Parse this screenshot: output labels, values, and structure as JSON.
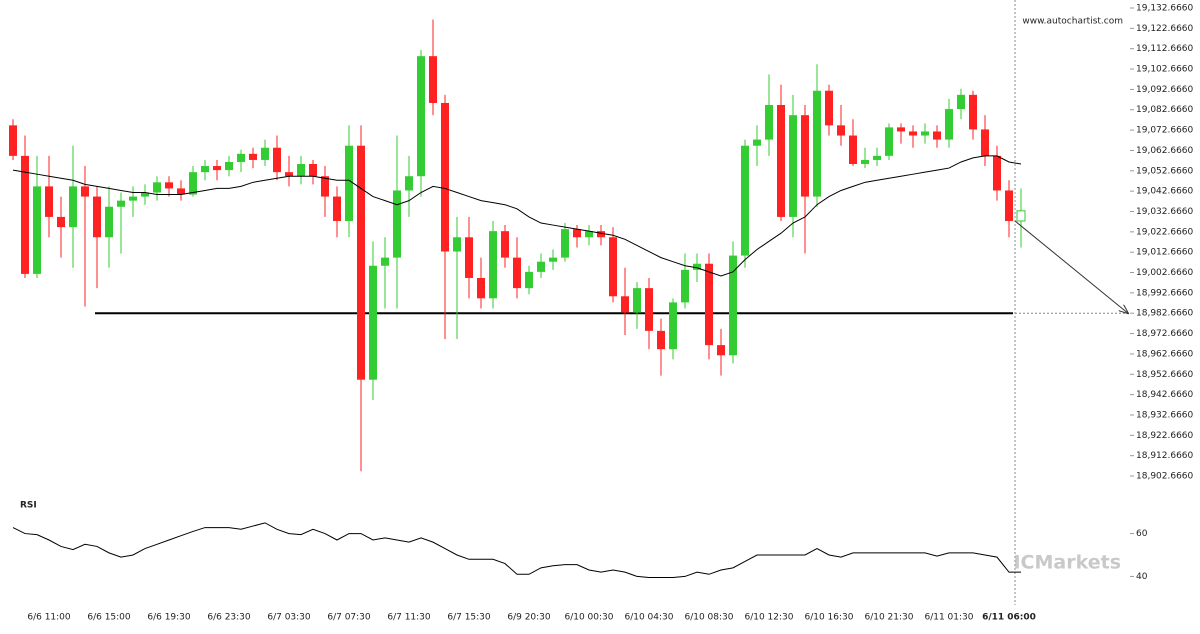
{
  "chart_data": [
    {
      "type": "candlestick",
      "source": "www.autochartist.com",
      "categories": [
        null,
        null,
        null,
        "6/6 11:00",
        null,
        null,
        null,
        null,
        "6/6 15:00",
        null,
        null,
        null,
        null,
        "6/6 19:30",
        null,
        null,
        null,
        null,
        "6/6 23:30",
        null,
        null,
        null,
        null,
        "6/7 03:30",
        null,
        null,
        null,
        null,
        "6/7 07:30",
        null,
        null,
        null,
        null,
        "6/7 11:30",
        null,
        null,
        null,
        null,
        "6/7 15:30",
        null,
        null,
        null,
        null,
        "6/9 20:30",
        null,
        null,
        null,
        null,
        "6/10 00:30",
        null,
        null,
        null,
        null,
        "6/10 04:30",
        null,
        null,
        null,
        null,
        "6/10 08:30",
        null,
        null,
        null,
        null,
        "6/10 12:30",
        null,
        null,
        null,
        null,
        "6/10 16:30",
        null,
        null,
        null,
        null,
        "6/10 21:30",
        null,
        null,
        null,
        null,
        "6/11 01:30",
        null,
        null,
        null,
        null,
        "6/11 06:00",
        null
      ],
      "open": [
        19075,
        19060,
        19002,
        19045,
        19030,
        19025,
        19045,
        19040,
        19020,
        19035,
        19038,
        19040,
        19042,
        19047,
        19044,
        19041,
        19052,
        19055,
        19053,
        19057,
        19061,
        19058,
        19064,
        19052,
        19050,
        19056,
        19050,
        19040,
        19028,
        19065,
        18950,
        19006,
        19010,
        19043,
        19050,
        19109,
        19086,
        19013,
        19020,
        19000,
        18990,
        19023,
        19010,
        18995,
        19003,
        19008,
        19010,
        19024,
        19020,
        19023,
        19020,
        18991,
        18983,
        18995,
        18974,
        18965,
        18988,
        19004,
        19007,
        18967,
        18962,
        19011,
        19065,
        19068,
        19085,
        19030,
        19080,
        19040,
        19092,
        19075,
        19070,
        19056,
        19058,
        19060,
        19074,
        19072,
        19070,
        19072,
        19068,
        19083,
        19090,
        19073,
        19060,
        19043,
        19028
      ],
      "high": [
        19078,
        19070,
        19060,
        19060,
        19040,
        19065,
        19055,
        19045,
        19045,
        19042,
        19045,
        19046,
        19050,
        19050,
        19048,
        19055,
        19058,
        19058,
        19060,
        19063,
        19064,
        19068,
        19070,
        19060,
        19060,
        19058,
        19055,
        19045,
        19075,
        19075,
        19018,
        19020,
        19070,
        19060,
        19112,
        19127,
        19090,
        19030,
        19030,
        19010,
        19028,
        19026,
        19020,
        19006,
        19012,
        19014,
        19027,
        19026,
        19026,
        19026,
        19025,
        19005,
        18998,
        19000,
        18980,
        18990,
        19012,
        19012,
        19012,
        18975,
        19018,
        19068,
        19075,
        19100,
        19095,
        19090,
        19085,
        19105,
        19095,
        19085,
        19078,
        19064,
        19064,
        19076,
        19076,
        19075,
        19076,
        19075,
        19088,
        19093,
        19092,
        19080,
        19065,
        19048,
        19044
      ],
      "low": [
        19058,
        19000,
        19000,
        19020,
        19010,
        19005,
        18986,
        18995,
        19005,
        19012,
        19030,
        19036,
        19038,
        19040,
        19038,
        19040,
        19048,
        19048,
        19050,
        19052,
        19054,
        19055,
        19048,
        19045,
        19046,
        19046,
        19030,
        19020,
        19020,
        18905,
        18940,
        18985,
        18985,
        19030,
        19040,
        19080,
        18970,
        18970,
        18990,
        18985,
        18985,
        19005,
        18990,
        18992,
        19000,
        19004,
        19008,
        19015,
        19016,
        19016,
        18988,
        18972,
        18975,
        18965,
        18952,
        18960,
        18985,
        18998,
        18960,
        18952,
        18958,
        19005,
        19055,
        19060,
        19028,
        19020,
        19012,
        19035,
        19070,
        19065,
        19055,
        19054,
        19055,
        19058,
        19066,
        19064,
        19066,
        19064,
        19064,
        19078,
        19068,
        19055,
        19038,
        19020,
        19015
      ],
      "close": [
        19060,
        19002,
        19045,
        19030,
        19025,
        19045,
        19040,
        19020,
        19035,
        19038,
        19040,
        19042,
        19047,
        19044,
        19041,
        19052,
        19055,
        19053,
        19057,
        19061,
        19058,
        19064,
        19052,
        19050,
        19056,
        19050,
        19040,
        19028,
        19065,
        18950,
        19006,
        19010,
        19043,
        19050,
        19109,
        19086,
        19013,
        19020,
        19000,
        18990,
        19023,
        19010,
        18995,
        19003,
        19008,
        19010,
        19024,
        19020,
        19023,
        19020,
        18991,
        18983,
        18995,
        18974,
        18965,
        18988,
        19004,
        19007,
        18967,
        18962,
        19011,
        19065,
        19068,
        19085,
        19030,
        19080,
        19040,
        19092,
        19075,
        19070,
        19056,
        19058,
        19060,
        19074,
        19072,
        19070,
        19072,
        19068,
        19083,
        19090,
        19073,
        19060,
        19043,
        19028,
        19033
      ],
      "ma": {
        "color": "#000000",
        "values": [
          19053,
          19052,
          19051,
          19050,
          19049,
          19048,
          19046,
          19045,
          19044,
          19043,
          19042,
          19042,
          19041,
          19041,
          19041,
          19042,
          19043,
          19044,
          19044,
          19045,
          19047,
          19048,
          19049,
          19050,
          19050,
          19050,
          19049,
          19048,
          19048,
          19044,
          19040,
          19038,
          19036,
          19038,
          19042,
          19045,
          19044,
          19042,
          19040,
          19038,
          19037,
          19036,
          19034,
          19030,
          19027,
          19026,
          19025,
          19024,
          19023,
          19022,
          19021,
          19019,
          19016,
          19013,
          19010,
          19008,
          19006,
          19005,
          19003,
          19001,
          19003,
          19009,
          19014,
          19018,
          19022,
          19027,
          19030,
          19036,
          19040,
          19043,
          19045,
          19047,
          19048,
          19049,
          19050,
          19051,
          19052,
          19053,
          19054,
          19057,
          19059,
          19060,
          19060,
          19057,
          19056
        ]
      },
      "up_color": "#33cc33",
      "down_color": "#ff2222",
      "level": 18982.666,
      "ylim": [
        18895.8,
        19136.6
      ],
      "yticks": [
        {
          "value": 19132.666,
          "label": "19,132.6660"
        },
        {
          "value": 19122.666,
          "label": "19,122.6660"
        },
        {
          "value": 19112.666,
          "label": "19,112.6660"
        },
        {
          "value": 19102.666,
          "label": "19,102.6660"
        },
        {
          "value": 19092.666,
          "label": "19,092.6660"
        },
        {
          "value": 19082.666,
          "label": "19,082.6660"
        },
        {
          "value": 19072.666,
          "label": "19,072.6660"
        },
        {
          "value": 19062.666,
          "label": "19,062.6660"
        },
        {
          "value": 19052.666,
          "label": "19,052.6660"
        },
        {
          "value": 19042.666,
          "label": "19,042.6660"
        },
        {
          "value": 19032.666,
          "label": "19,032.6660"
        },
        {
          "value": 19022.666,
          "label": "19,022.6660"
        },
        {
          "value": 19012.666,
          "label": "19,012.6660"
        },
        {
          "value": 19002.666,
          "label": "19,002.6660"
        },
        {
          "value": 18992.666,
          "label": "18,992.6660"
        },
        {
          "value": 18982.666,
          "label": "18,982.6660"
        },
        {
          "value": 18972.666,
          "label": "18,972.6660"
        },
        {
          "value": 18962.666,
          "label": "18,962.6660"
        },
        {
          "value": 18952.666,
          "label": "18,952.6660"
        },
        {
          "value": 18942.666,
          "label": "18,942.6660"
        },
        {
          "value": 18932.666,
          "label": "18,932.6660"
        },
        {
          "value": 18922.666,
          "label": "18,922.6660"
        },
        {
          "value": 18912.666,
          "label": "18,912.6660"
        },
        {
          "value": 18902.666,
          "label": "18,902.6660"
        }
      ]
    },
    {
      "type": "line",
      "title": "RSI",
      "brand": "ICMarkets",
      "color": "#000000",
      "values": [
        62.8,
        60,
        59.5,
        57,
        54,
        52.5,
        55,
        54,
        51,
        49,
        50,
        53,
        55,
        57,
        59,
        61,
        62.8,
        62.8,
        62.8,
        62,
        63.5,
        65,
        62,
        60,
        59.5,
        62,
        60,
        57,
        60,
        60,
        57,
        58,
        57,
        56,
        58,
        56,
        53,
        50,
        48,
        48,
        48,
        46,
        41,
        41,
        44,
        45,
        45.5,
        45.5,
        43,
        42,
        43,
        42,
        40,
        39.5,
        39.5,
        39.5,
        40,
        42,
        41,
        43,
        44,
        47,
        50,
        50,
        50,
        50,
        50,
        53,
        50,
        49,
        51,
        51,
        51,
        51,
        51,
        51,
        51,
        49.5,
        51,
        51,
        51,
        50,
        49,
        42,
        42
      ],
      "ylim": [
        29,
        78
      ],
      "yticks": [
        40,
        60
      ]
    }
  ]
}
